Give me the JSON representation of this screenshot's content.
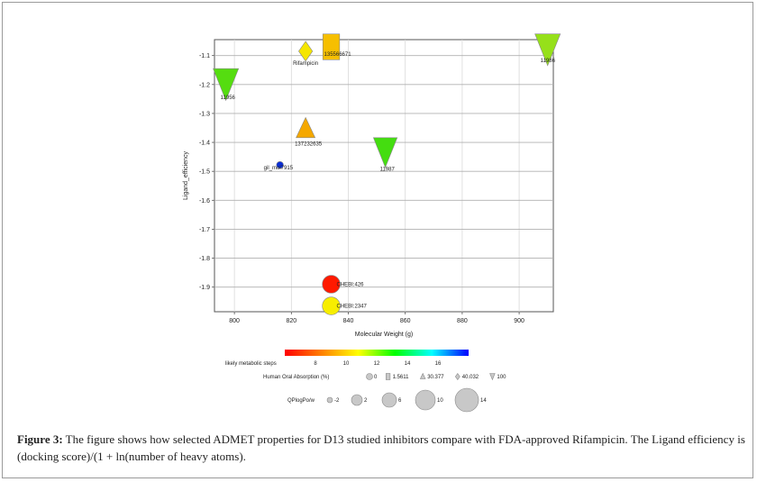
{
  "chart_data": {
    "type": "scatter",
    "xlabel": "Molecular Weight (g)",
    "ylabel": "Ligand_efficiency",
    "xlim": [
      793,
      912
    ],
    "ylim": [
      -1.985,
      -1.045
    ],
    "xticks": [
      800,
      820,
      840,
      860,
      880,
      900
    ],
    "yticks": [
      -1.1,
      -1.2,
      -1.3,
      -1.4,
      -1.5,
      -1.6,
      -1.7,
      -1.8,
      -1.9
    ],
    "grid": true,
    "points": [
      {
        "label": "Rifampicin",
        "x": 825,
        "y": -1.085,
        "color": "#f5e600",
        "shape": "diamond",
        "size": 1.0
      },
      {
        "label": "135566671",
        "x": 834,
        "y": -1.07,
        "color": "#f6bf00",
        "shape": "square",
        "size": 1.3
      },
      {
        "label": "11986",
        "x": 910,
        "y": -1.08,
        "color": "#96e01a",
        "shape": "triangle-down",
        "size": 1.6
      },
      {
        "label": "11956",
        "x": 797,
        "y": -1.2,
        "color": "#55dd10",
        "shape": "triangle-down",
        "size": 1.6
      },
      {
        "label": "137232635",
        "x": 825,
        "y": -1.355,
        "color": "#f5a800",
        "shape": "triangle-up",
        "size": 1.2
      },
      {
        "label": "gil_mol7915",
        "x": 816,
        "y": -1.478,
        "color": "#0a2ed8",
        "shape": "circle",
        "size": 0.35
      },
      {
        "label": "11987",
        "x": 853,
        "y": -1.435,
        "color": "#44dd10",
        "shape": "triangle-down",
        "size": 1.5
      },
      {
        "label": "CHEBI:426",
        "x": 834,
        "y": -1.89,
        "color": "#ff1a00",
        "shape": "circle",
        "size": 0.9
      },
      {
        "label": "CHEBI:2347",
        "x": 834,
        "y": -1.965,
        "color": "#f7ee00",
        "shape": "circle",
        "size": 0.9
      }
    ],
    "colorbar": {
      "title": "likely metabolic steps",
      "ticks": [
        8,
        10,
        12,
        14,
        16
      ],
      "range": [
        6,
        18
      ],
      "colors": [
        "#ff0000",
        "#ff8000",
        "#ffff00",
        "#00ff00",
        "#00ffff",
        "#0000ff"
      ]
    },
    "shape_legend": {
      "title": "Human Oral Absorption (%)",
      "items": [
        {
          "shape": "circle",
          "label": "0"
        },
        {
          "shape": "square",
          "label": "1.5611"
        },
        {
          "shape": "triangle-up",
          "label": "30.377"
        },
        {
          "shape": "diamond",
          "label": "40.032"
        },
        {
          "shape": "triangle-down",
          "label": "100"
        }
      ]
    },
    "size_legend": {
      "title": "QPlogPo/w",
      "items": [
        {
          "label": "-2",
          "r": 3
        },
        {
          "label": "2",
          "r": 6
        },
        {
          "label": "6",
          "r": 8
        },
        {
          "label": "10",
          "r": 11
        },
        {
          "label": "14",
          "r": 13
        }
      ]
    }
  },
  "caption": {
    "label": "Figure 3:",
    "text": " The figure shows how selected ADMET properties for D13 studied inhibitors compare with FDA-approved Rifampicin. The Ligand efficiency is (docking score)/(1 + ln(number of heavy atoms)."
  }
}
